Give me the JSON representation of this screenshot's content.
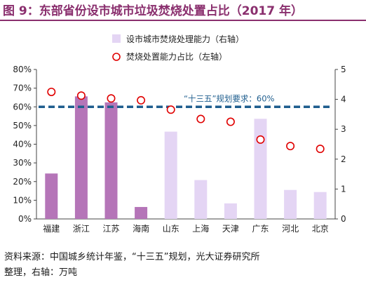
{
  "figure": {
    "title": "图 9：东部省份设市城市垃圾焚烧处置占比（2017 年）",
    "source_line1": "资料来源：中国城乡统计年鉴，“十三五”规划，光大证券研究所",
    "source_line2": "整理，右轴：万吨"
  },
  "chart_data": {
    "type": "bar",
    "categories": [
      "福建",
      "浙江",
      "江苏",
      "海南",
      "山东",
      "上海",
      "天津",
      "广东",
      "河北",
      "北京"
    ],
    "series": [
      {
        "name": "设市城市焚烧处理能力（右轴）",
        "kind": "bar",
        "axis": "right",
        "values": [
          1.52,
          4.1,
          3.9,
          0.4,
          2.92,
          1.3,
          0.52,
          3.35,
          0.97,
          0.9
        ],
        "colors": [
          "#b575b8",
          "#b575b8",
          "#b575b8",
          "#b575b8",
          "#e4d5f4",
          "#e4d5f4",
          "#e4d5f4",
          "#e4d5f4",
          "#e4d5f4",
          "#e4d5f4"
        ]
      },
      {
        "name": "焚烧处置能力占比（左轴）",
        "kind": "scatter",
        "axis": "left",
        "values": [
          0.68,
          0.66,
          0.645,
          0.635,
          0.585,
          0.535,
          0.52,
          0.425,
          0.39,
          0.375
        ],
        "color": "#e00000"
      }
    ],
    "left_axis": {
      "ylim": [
        0,
        0.8
      ],
      "ticks": [
        "0%",
        "10%",
        "20%",
        "30%",
        "40%",
        "50%",
        "60%",
        "70%",
        "80%"
      ]
    },
    "right_axis": {
      "ylim": [
        0,
        5
      ],
      "ticks": [
        "0",
        "1",
        "2",
        "3",
        "4",
        "5"
      ]
    },
    "reference_line": {
      "value": 0.6,
      "label": "“十三五”规划要求：60%",
      "color": "#1f5e8e"
    },
    "legend": {
      "placement": "top-center"
    },
    "colors": {
      "bar_dark": "#b575b8",
      "bar_light": "#e4d5f4",
      "marker": "#e00000",
      "ref_line": "#1f5e8e",
      "title": "#8a2f6e"
    }
  }
}
